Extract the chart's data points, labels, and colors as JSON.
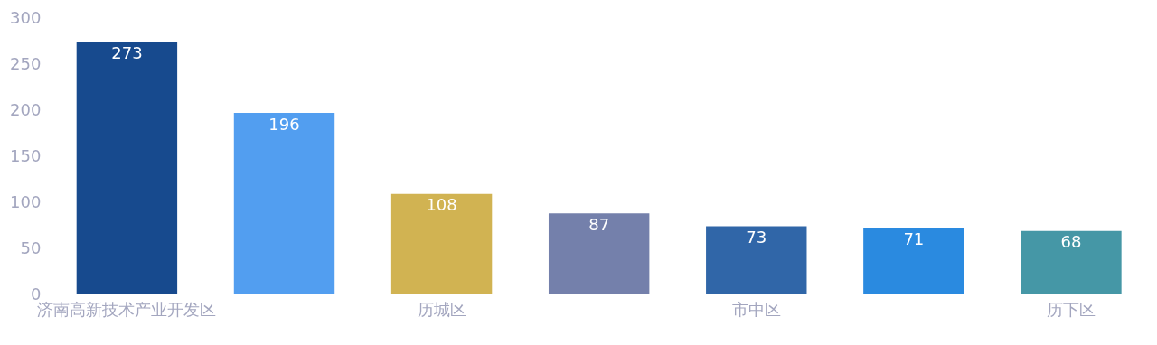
{
  "chart_data": {
    "type": "bar",
    "categories": [
      "济南高新技术产业开发区",
      null,
      "历城区",
      null,
      "市中区",
      null,
      "历下区"
    ],
    "values": [
      273,
      196,
      108,
      87,
      73,
      71,
      68
    ],
    "colors": [
      "#174a8e",
      "#529ef0",
      "#d1b352",
      "#7480ab",
      "#3066a8",
      "#2a8ae0",
      "#4597a6"
    ],
    "ylim": [
      0,
      300
    ],
    "yticks": [
      0,
      50,
      100,
      150,
      200,
      250,
      300
    ],
    "grid": false,
    "data_labels": true
  }
}
